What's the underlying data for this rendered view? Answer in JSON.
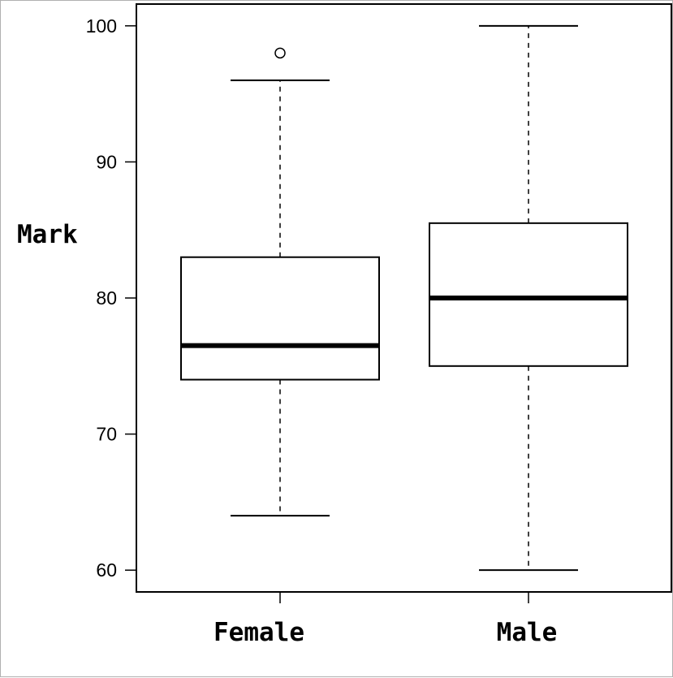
{
  "chart_data": {
    "type": "boxplot",
    "title": "",
    "xlabel": "",
    "ylabel": "Mark",
    "ylim": [
      58.4,
      101.6
    ],
    "yticks": [
      60,
      70,
      80,
      90,
      100
    ],
    "grid": false,
    "legend": "none",
    "categories": [
      "Female",
      "Male"
    ],
    "boxes": [
      {
        "category": "Female",
        "whisker_low": 64,
        "q1": 74,
        "median": 76.5,
        "q3": 83,
        "whisker_high": 96,
        "outliers": [
          98
        ]
      },
      {
        "category": "Male",
        "whisker_low": 60,
        "q1": 75,
        "median": 80,
        "q3": 85.5,
        "whisker_high": 100,
        "outliers": []
      }
    ]
  }
}
